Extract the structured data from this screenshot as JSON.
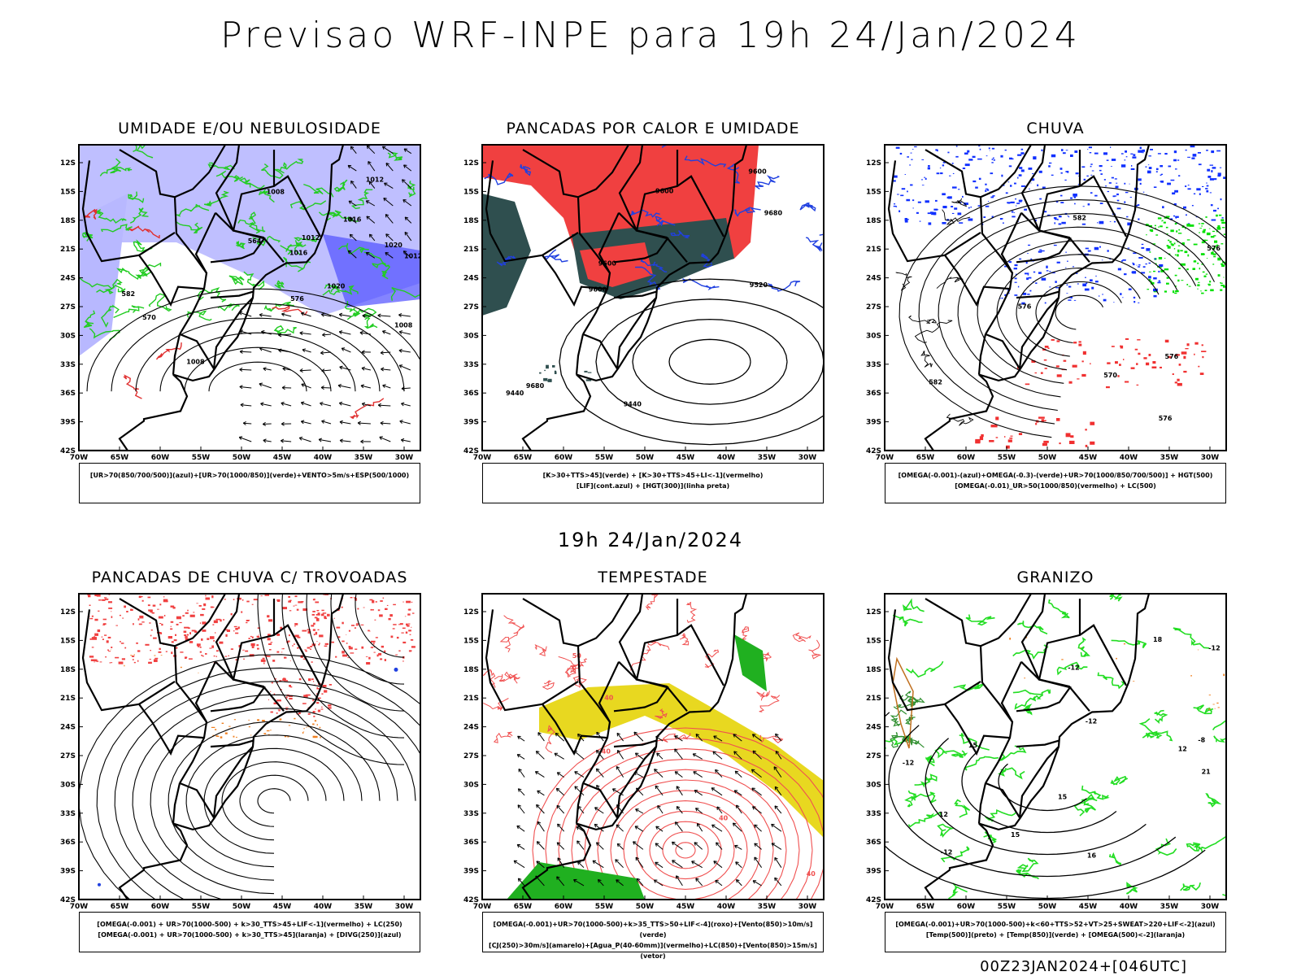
{
  "title": "Previsao WRF-INPE  para 19h 24/Jan/2024",
  "mid_title": "19h 24/Jan/2024",
  "footer": "00Z23JAN2024+[046UTC]",
  "chart_data": {
    "type": "weather-map-grid",
    "lat_ticks": [
      "12S",
      "15S",
      "18S",
      "21S",
      "24S",
      "27S",
      "30S",
      "33S",
      "36S",
      "39S",
      "42S"
    ],
    "lon_ticks": [
      "70W",
      "65W",
      "60W",
      "55W",
      "50W",
      "45W",
      "40W",
      "35W",
      "30W"
    ],
    "panels": [
      {
        "id": "umidade",
        "title": "UMIDADE E/OU NEBULOSIDADE",
        "legend": [
          "[UR>70(850/700/500)](azul)+[UR>70(1000/850)](verde)+VENTO>5m/s+ESP(500/1000)"
        ],
        "contour_labels": [
          "1008",
          "1008",
          "1008",
          "1012",
          "1016",
          "1020",
          "1012",
          "1016",
          "1020",
          "1012",
          "570",
          "576",
          "564",
          "582"
        ],
        "colors": {
          "humidity_mid": "#b8b8ff",
          "humidity_low": "#22cc22",
          "thickness": "#e03030"
        }
      },
      {
        "id": "pancadas_calor",
        "title": "PANCADAS POR CALOR E UMIDADE",
        "legend": [
          "[K>30+TTS>45](verde) + [K>30+TTS>45+LI<-1](vermelho)",
          "[LIF](cont.azul) + [HGT(300)](linha preta)"
        ],
        "contour_labels": [
          "9680",
          "9680",
          "9600",
          "9600",
          "9600",
          "9600",
          "9520",
          "9440",
          "9440"
        ],
        "colors": {
          "unstable": "#f04040",
          "moist": "#2f4f4f",
          "lif": "#2040e0"
        }
      },
      {
        "id": "chuva",
        "title": "CHUVA",
        "legend": [
          "[OMEGA(-0.001)-(azul)+OMEGA(-0.3)-(verde)+UR>70(1000/850/700/500)] + HGT(500)",
          "[OMEGA(-0.01)_UR>50(1000/850)(vermelho) + LC(500)"
        ],
        "contour_labels": [
          "582",
          "576",
          "576",
          "570",
          "582",
          "576",
          "576"
        ],
        "colors": {
          "omega_weak": "#1030ff",
          "omega_strong": "#00e000",
          "rain_low": "#f03030"
        }
      },
      {
        "id": "trovoadas",
        "title": "PANCADAS DE CHUVA C/ TROVOADAS",
        "legend": [
          "[OMEGA(-0.001) + UR>70(1000-500) + k>30_TTS>45+LIF<-1](vermelho) + LC(250)",
          "[OMEGA(-0.001) + UR>70(1000-500) + k>30_TTS>45](laranja) + [DIVG(250)](azul)"
        ],
        "contour_labels": [],
        "colors": {
          "storm": "#f04040",
          "showers": "#f08020",
          "divergence": "#2040e0"
        }
      },
      {
        "id": "tempestade",
        "title": "TEMPESTADE",
        "legend": [
          "[OMEGA(-0.001)+UR>70(1000-500)+k>35_TTS>50+LIF<-4](roxo)+[Vento(850)>10m/s](verde)",
          "[CJ(250)>30m/s](amarelo)+[Agua_P(40-60mm)](vermelho)+LC(850)+[Vento(850)>15m/s](vetor)"
        ],
        "contour_labels": [
          "40",
          "40",
          "50",
          "40",
          "40"
        ],
        "colors": {
          "jet": "#e8d820",
          "pw": "#f05050",
          "wind": "#20b020"
        }
      },
      {
        "id": "granizo",
        "title": "GRANIZO",
        "legend": [
          "[OMEGA(-0.001)+UR>70(1000-500)+k<60+TTS>52+VT>25+SWEAT>220+LIF<-2](azul)",
          "[Temp(500)](preto) + [Temp(850)](verde) + [OMEGA(500)<-2](laranja)"
        ],
        "contour_labels": [
          "-12",
          "-12",
          "-12",
          "-12",
          "-12",
          "-8",
          "12",
          "15",
          "15",
          "12",
          "16",
          "21",
          "18",
          "15"
        ],
        "colors": {
          "temp850": "#22dd22",
          "omega": "#f08020",
          "temp500": "#000000"
        }
      }
    ]
  }
}
